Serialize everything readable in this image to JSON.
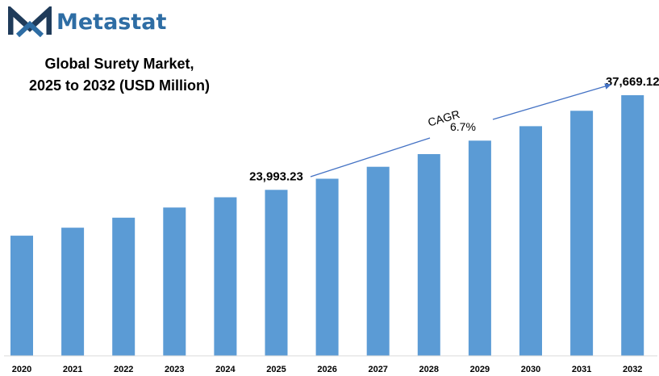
{
  "brand": {
    "name": "Metastat",
    "logo_color": "#2e6da4",
    "logo_dark": "#1f3b5a"
  },
  "header": {
    "title_line1": "Global Surety Market,",
    "title_line2": "2025 to 2032 (USD Million)"
  },
  "annotation": {
    "cagr_label": "CAGR",
    "cagr_value": "6.7%"
  },
  "chart_data": {
    "type": "bar",
    "title": "Global Surety Market, 2025 to 2032 (USD Million)",
    "categories": [
      "2020",
      "2021",
      "2022",
      "2023",
      "2024",
      "2025",
      "2026",
      "2027",
      "2028",
      "2029",
      "2030",
      "2031",
      "2032"
    ],
    "series": [
      {
        "values": [
          17360,
          18520,
          19960,
          21430,
          22920,
          23993.23,
          25600,
          27320,
          29150,
          31100,
          33190,
          35420,
          37669.12
        ]
      }
    ],
    "data_labels": [
      {
        "category": "2025",
        "text": "23,993.23"
      },
      {
        "category": "2032",
        "text": "37,669.12"
      }
    ],
    "ylim": [
      0,
      40000
    ],
    "bar_color": "#5b9bd5",
    "arrow_color": "#4472c4",
    "grid": false,
    "legend": "none"
  }
}
